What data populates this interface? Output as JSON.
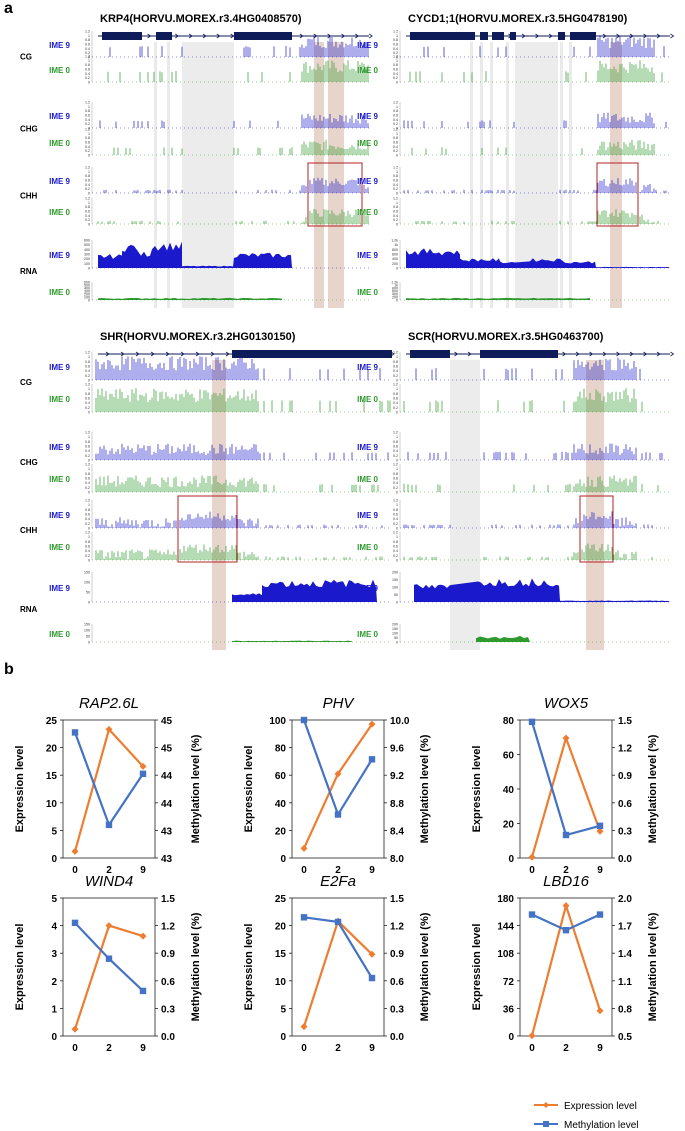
{
  "panel_a": {
    "letter": "a",
    "track_labels": {
      "context": [
        "CG",
        "CHG",
        "CHH"
      ],
      "rna": "RNA",
      "ime9": "IME 9",
      "ime0": "IME 0"
    },
    "colors": {
      "ime9": "#1a1acc",
      "ime0": "#2e9a2e",
      "gene": "#0f1c5a",
      "highlight": "#c9a08a",
      "box": "#b22222",
      "shade": "#dcdcdc"
    },
    "ticks": {
      "meth": [
        "1.2",
        "1",
        "0.8",
        "0.6",
        "0.4",
        "0.2",
        "0"
      ],
      "rna_krp4": [
        "600",
        "500",
        "400",
        "300",
        "200",
        "100",
        "0"
      ],
      "rna_cycd1": [
        "1.2k",
        "1k",
        "800",
        "600",
        "400",
        "200",
        "0"
      ],
      "rna_shr": [
        "150",
        "100",
        "50",
        "0"
      ],
      "rna_scr": [
        "200",
        "150",
        "100",
        "50",
        "0"
      ]
    },
    "genes": [
      {
        "title": "KRP4(HORVU.MOREX.r3.4HG0408570)"
      },
      {
        "title": "CYCD1;1(HORVU.MOREX.r3.5HG0478190)"
      },
      {
        "title": "SHR(HORVU.MOREX.r3.2HG0130150)"
      },
      {
        "title": "SCR(HORVU.MOREX.r3.5HG0463700)"
      }
    ]
  },
  "panel_b": {
    "letter": "b",
    "legend": {
      "expression": "Expression level",
      "methylation": "Methylation level"
    },
    "colors": {
      "expression": "#ed7d31",
      "methylation": "#4472c4"
    }
  },
  "chart_data": [
    {
      "type": "line",
      "title": "RAP2.6L",
      "categories": [
        "0",
        "2",
        "9"
      ],
      "xlabel": "",
      "ylabel": "Expression level",
      "y2label": "Methylation level (%)",
      "ylim": [
        0,
        25
      ],
      "yticks": [
        "0",
        "5",
        "10",
        "15",
        "20",
        "25"
      ],
      "y2lim": [
        43,
        45
      ],
      "y2ticks": [
        "43",
        "43",
        "44",
        "44",
        "45",
        "45"
      ],
      "series": [
        {
          "name": "Expression level",
          "axis": "left",
          "values": [
            1.2,
            23.3,
            16.6
          ]
        },
        {
          "name": "Methylation level",
          "axis": "right",
          "values": [
            44.82,
            43.48,
            44.22
          ]
        }
      ]
    },
    {
      "type": "line",
      "title": "PHV",
      "categories": [
        "0",
        "2",
        "9"
      ],
      "xlabel": "",
      "ylabel": "Expression level",
      "y2label": "Methylation level (%)",
      "ylim": [
        0,
        100
      ],
      "yticks": [
        "0",
        "20",
        "40",
        "60",
        "80",
        "100"
      ],
      "y2lim": [
        8.0,
        10.0
      ],
      "y2ticks": [
        "8.0",
        "8.4",
        "8.8",
        "9.2",
        "9.6",
        "10.0"
      ],
      "series": [
        {
          "name": "Expression level",
          "axis": "left",
          "values": [
            7,
            61,
            97
          ]
        },
        {
          "name": "Methylation level",
          "axis": "right",
          "values": [
            10.0,
            8.63,
            9.43
          ]
        }
      ]
    },
    {
      "type": "line",
      "title": "WOX5",
      "categories": [
        "0",
        "2",
        "9"
      ],
      "xlabel": "",
      "ylabel": "Expression level",
      "y2label": "Methylation level (%)",
      "ylim": [
        0,
        80
      ],
      "yticks": [
        "0",
        "20",
        "40",
        "60",
        "80"
      ],
      "y2lim": [
        0,
        1.5
      ],
      "y2ticks": [
        "0.0",
        "0.3",
        "0.6",
        "0.9",
        "1.2",
        "1.5"
      ],
      "series": [
        {
          "name": "Expression level",
          "axis": "left",
          "values": [
            0.5,
            69.5,
            15.5
          ]
        },
        {
          "name": "Methylation level",
          "axis": "right",
          "values": [
            1.48,
            0.25,
            0.35
          ]
        }
      ]
    },
    {
      "type": "line",
      "title": "WIND4",
      "categories": [
        "0",
        "2",
        "9"
      ],
      "xlabel": "",
      "ylabel": "Expression level",
      "y2label": "Methylation level (%)",
      "ylim": [
        0,
        5
      ],
      "yticks": [
        "0",
        "1",
        "2",
        "3",
        "4",
        "5"
      ],
      "y2lim": [
        0,
        1.5
      ],
      "y2ticks": [
        "0.0",
        "0.3",
        "0.6",
        "0.9",
        "1.2",
        "1.5"
      ],
      "series": [
        {
          "name": "Expression level",
          "axis": "left",
          "values": [
            0.25,
            4.0,
            3.62
          ]
        },
        {
          "name": "Methylation level",
          "axis": "right",
          "values": [
            1.23,
            0.84,
            0.49
          ]
        }
      ]
    },
    {
      "type": "line",
      "title": "E2Fa",
      "categories": [
        "0",
        "2",
        "9"
      ],
      "xlabel": "",
      "ylabel": "Expression level",
      "y2label": "Methylation level (%)",
      "ylim": [
        0,
        25
      ],
      "yticks": [
        "0",
        "5",
        "10",
        "15",
        "20",
        "25"
      ],
      "y2lim": [
        0,
        1.5
      ],
      "y2ticks": [
        "0.0",
        "0.3",
        "0.6",
        "0.9",
        "1.2",
        "1.5"
      ],
      "series": [
        {
          "name": "Expression level",
          "axis": "left",
          "values": [
            1.7,
            20.8,
            14.8
          ]
        },
        {
          "name": "Methylation level",
          "axis": "right",
          "values": [
            1.29,
            1.24,
            0.63
          ]
        }
      ]
    },
    {
      "type": "line",
      "title": "LBD16",
      "categories": [
        "0",
        "2",
        "9"
      ],
      "xlabel": "",
      "ylabel": "Expression level",
      "y2label": "Methylation level (%)",
      "ylim": [
        0,
        180
      ],
      "yticks": [
        "0",
        "36",
        "72",
        "108",
        "144",
        "180"
      ],
      "y2lim": [
        0.5,
        2.0
      ],
      "y2ticks": [
        "0.5",
        "0.8",
        "1.1",
        "1.4",
        "1.7",
        "2.0"
      ],
      "series": [
        {
          "name": "Expression level",
          "axis": "left",
          "values": [
            0.5,
            170,
            33
          ]
        },
        {
          "name": "Methylation level",
          "axis": "right",
          "values": [
            1.82,
            1.65,
            1.82
          ]
        }
      ]
    }
  ]
}
